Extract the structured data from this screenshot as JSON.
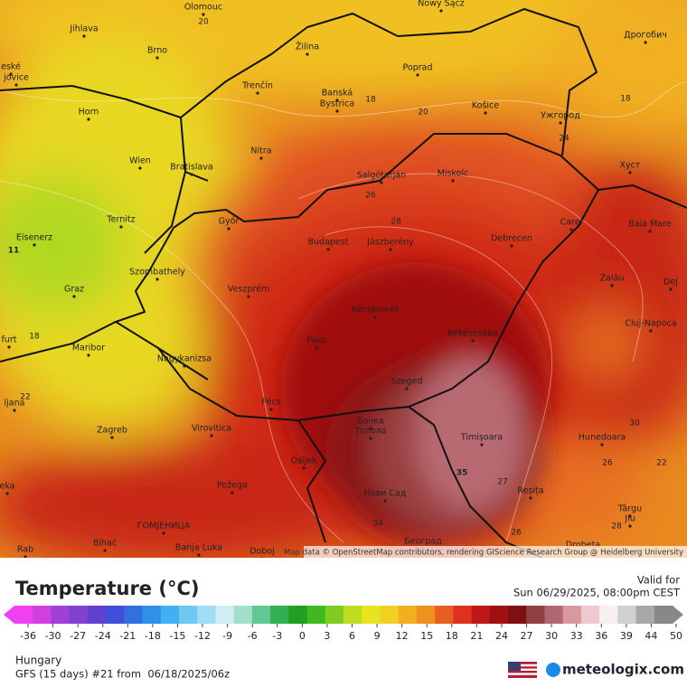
{
  "map": {
    "attribution": "Map data © OpenStreetMap contributors, rendering GIScience Research Group @ Heidelberg University",
    "cities": [
      "Olomouc",
      "Jihlava",
      "Brno",
      "Žilina",
      "Poprad",
      "Nowy Sącz",
      "Дрогобич",
      "eské",
      "jovice",
      "Trenčín",
      "Banská",
      "Bystrica",
      "Košice",
      "Ужгород",
      "Horn",
      "Nitra",
      "Wien",
      "Bratislava",
      "Salgótarján",
      "Miskolc",
      "Хуст",
      "Ternitz",
      "Győr",
      "Budapest",
      "Jászberény",
      "Debrecen",
      "Carei",
      "Baia Mare",
      "Eisenerz",
      "Szombathely",
      "Veszprém",
      "Zalău",
      "Dej",
      "Graz",
      "Kecskemét",
      "Cluj-Napoca",
      "furt",
      "Paks",
      "Békéscsaba",
      "Maribor",
      "Nagykanizsa",
      "Szeged",
      "ljana",
      "Pécs",
      "Zagreb",
      "Virovitica",
      "Бачка",
      "Топола",
      "Timișoara",
      "Hunedoara",
      "Osijek",
      "eka",
      "Požega",
      "Нови Сад",
      "Reșița",
      "Târgu",
      "Jiu",
      "ГОМЈЕНИЦА",
      "Bihać",
      "Banja Luka",
      "Rab",
      "Doboj",
      "Београд",
      "Drobeta"
    ],
    "contour_labels": [
      "20",
      "18",
      "20",
      "18",
      "24",
      "26",
      "28",
      "11",
      "18",
      "22",
      "35",
      "34",
      "27",
      "26",
      "28",
      "30",
      "22",
      "26"
    ]
  },
  "legend": {
    "title": "Temperature (°C)",
    "valid_label": "Valid for",
    "valid_time": "Sun 06/29/2025, 08:00pm CEST",
    "ticks": [
      -36,
      -30,
      -27,
      -24,
      -21,
      -18,
      -15,
      -12,
      -9,
      -6,
      -3,
      0,
      3,
      6,
      9,
      12,
      15,
      18,
      21,
      24,
      27,
      30,
      33,
      36,
      39,
      44,
      50
    ],
    "colors": [
      "#f040f0",
      "#d040e0",
      "#a040d8",
      "#8040d0",
      "#6040d0",
      "#4050d8",
      "#3070e0",
      "#3090e8",
      "#40b0f0",
      "#70c8f0",
      "#a0dcf4",
      "#d0ecf4",
      "#a0e0c8",
      "#60c890",
      "#30b050",
      "#20a020",
      "#40b820",
      "#80cc20",
      "#c0dc20",
      "#e8e420",
      "#f0d020",
      "#f0b020",
      "#f09020",
      "#e86020",
      "#e03020",
      "#c01818",
      "#a01010",
      "#801010",
      "#904040",
      "#b06870",
      "#d898a0",
      "#f0c8d0",
      "#f8f0f0",
      "#d0d0d0",
      "#a8a8a8",
      "#888888"
    ]
  },
  "footer": {
    "region": "Hungary",
    "model": "GFS (15 days) #21 from  06/18/2025/06z",
    "brand": "meteologix.com"
  }
}
